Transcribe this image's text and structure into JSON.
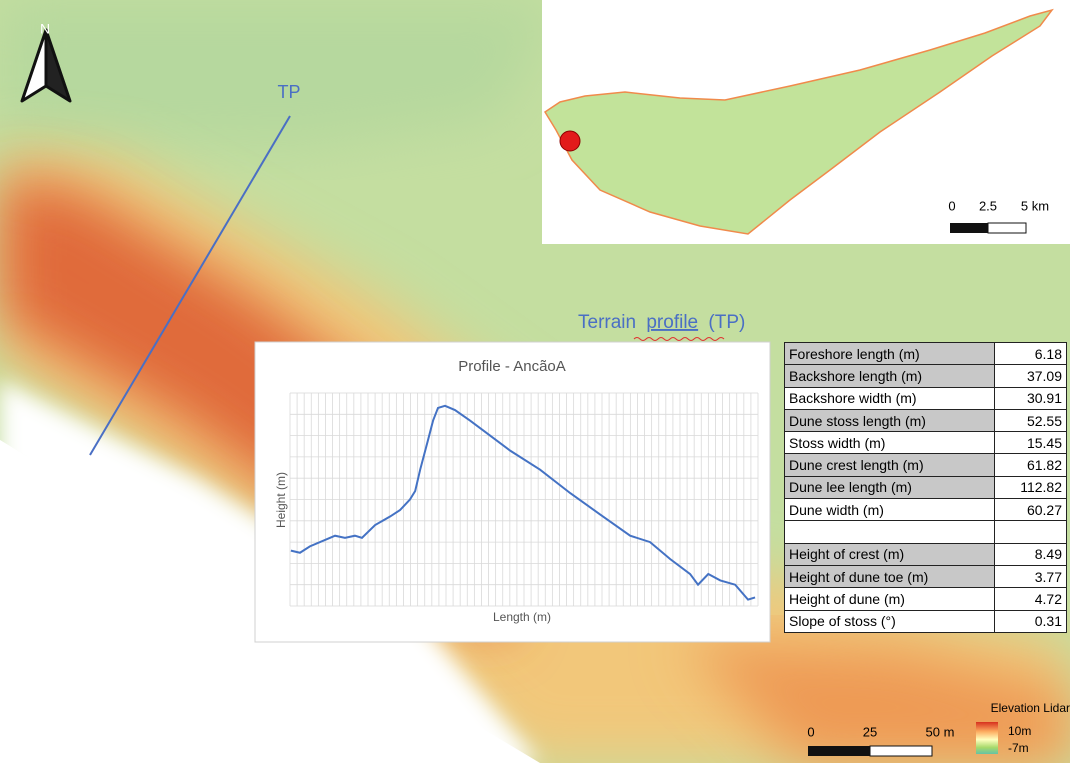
{
  "map": {
    "north_label": "N",
    "transect_label": "TP",
    "profile_heading": [
      "Terrain",
      "profile",
      "(TP)"
    ],
    "inset_scale": {
      "ticks": [
        "0",
        "2.5",
        "5 km"
      ]
    },
    "scale": {
      "ticks": [
        "0",
        "25",
        "50 m"
      ]
    },
    "legend": {
      "title": "Elevation Lidar",
      "max": "10m",
      "min": "-7m"
    }
  },
  "chart_data": {
    "type": "line",
    "title": "Profile - AncãoA",
    "x_label": "Length (m)",
    "y_label": "Height (m)",
    "xlim": [
      0,
      160
    ],
    "ylim": [
      0,
      10
    ],
    "grid": true,
    "series": [
      {
        "color": "#4472c4",
        "x": [
          0.3,
          3.4,
          6.8,
          13.7,
          15.4,
          18.8,
          22.2,
          24.6,
          29.1,
          34.2,
          37.6,
          41.0,
          42.8,
          44.5,
          47.2,
          48.9,
          50.6,
          53.0,
          56.4,
          61.6,
          68.4,
          75.2,
          85.5,
          95.8,
          106.0,
          116.3,
          123.1,
          130.0,
          136.8,
          139.5,
          143.0,
          147.1,
          152.2,
          156.6,
          159.0
        ],
        "values": [
          2.6,
          2.5,
          2.8,
          3.2,
          3.3,
          3.2,
          3.3,
          3.2,
          3.8,
          4.2,
          4.5,
          5.0,
          5.4,
          6.4,
          7.8,
          8.7,
          9.3,
          9.4,
          9.2,
          8.7,
          8.0,
          7.3,
          6.4,
          5.3,
          4.3,
          3.3,
          3.0,
          2.2,
          1.5,
          1.0,
          1.5,
          1.2,
          1.0,
          0.3,
          0.4
        ]
      }
    ]
  },
  "table": {
    "rows": [
      [
        "Foreshore length (m)",
        "6.18"
      ],
      [
        "Backshore length (m)",
        "37.09"
      ],
      [
        "Backshore width (m)",
        "30.91"
      ],
      [
        "Dune stoss length (m)",
        "52.55"
      ],
      [
        "Stoss width (m)",
        "15.45"
      ],
      [
        "Dune crest length (m)",
        "61.82"
      ],
      [
        "Dune lee length (m)",
        "112.82"
      ],
      [
        "Dune width (m)",
        "60.27"
      ],
      [
        "Height of crest (m)",
        "8.49"
      ],
      [
        "Height of dune toe (m)",
        "3.77"
      ],
      [
        "Height of dune (m)",
        "4.72"
      ],
      [
        "Slope of stoss (°)",
        "0.31"
      ]
    ]
  }
}
